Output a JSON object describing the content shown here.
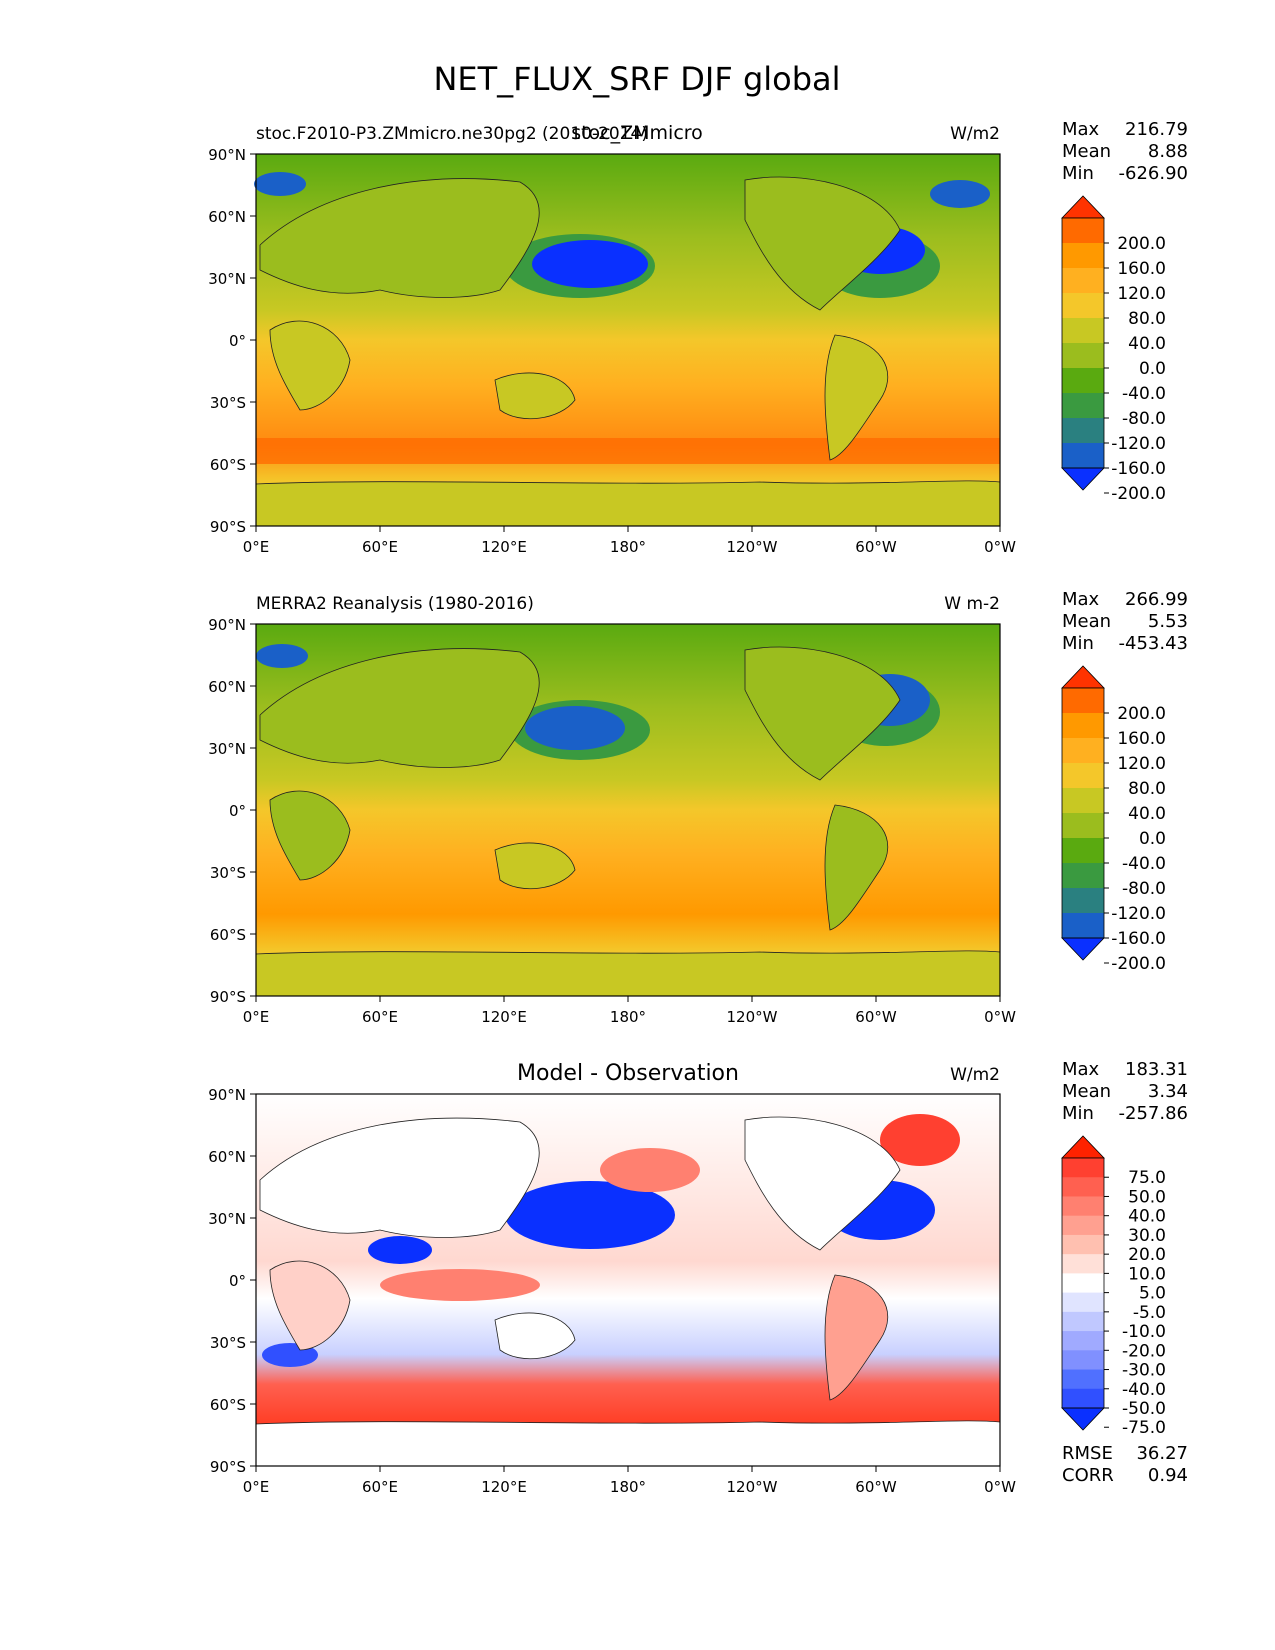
{
  "figure": {
    "title": "NET_FLUX_SRF DJF global",
    "lat_ticks": [
      "90°N",
      "60°N",
      "30°N",
      "0°",
      "30°S",
      "60°S",
      "90°S"
    ],
    "lon_ticks": [
      "0°E",
      "60°E",
      "120°E",
      "180°",
      "120°W",
      "60°W",
      "0°W"
    ]
  },
  "chart_data": [
    {
      "type": "heatmap",
      "panel": "model",
      "left_label": "stoc.F2010-P3.ZMmicro.ne30pg2 (2010-2014)",
      "overlay_label": "stoc_ZMmicro",
      "units": "W/m2",
      "stats": {
        "Max": "216.79",
        "Mean": "8.88",
        "Min": "-626.90"
      },
      "colorbar_levels": [
        "200.0",
        "160.0",
        "120.0",
        "80.0",
        "40.0",
        "0.0",
        "-40.0",
        "-80.0",
        "-120.0",
        "-160.0",
        "-200.0"
      ],
      "colorbar_colors": [
        "#ff3300",
        "#ff6a00",
        "#ff9900",
        "#ffb020",
        "#f4c72a",
        "#c8c823",
        "#9bbd1e",
        "#5aaa10",
        "#3a9a40",
        "#2a8080",
        "#1a60c8",
        "#0a30ff"
      ],
      "xlim": [
        0,
        360
      ],
      "ylim": [
        -90,
        90
      ]
    },
    {
      "type": "heatmap",
      "panel": "observation",
      "left_label": "MERRA2 Reanalysis (1980-2016)",
      "units": "W m-2",
      "stats": {
        "Max": "266.99",
        "Mean": "5.53",
        "Min": "-453.43"
      },
      "colorbar_levels": [
        "200.0",
        "160.0",
        "120.0",
        "80.0",
        "40.0",
        "0.0",
        "-40.0",
        "-80.0",
        "-120.0",
        "-160.0",
        "-200.0"
      ],
      "colorbar_colors": [
        "#ff3300",
        "#ff6a00",
        "#ff9900",
        "#ffb020",
        "#f4c72a",
        "#c8c823",
        "#9bbd1e",
        "#5aaa10",
        "#3a9a40",
        "#2a8080",
        "#1a60c8",
        "#0a30ff"
      ],
      "xlim": [
        0,
        360
      ],
      "ylim": [
        -90,
        90
      ]
    },
    {
      "type": "heatmap",
      "panel": "difference",
      "center_title": "Model - Observation",
      "units": "W/m2",
      "stats": {
        "Max": "183.31",
        "Mean": "3.34",
        "Min": "-257.86"
      },
      "extra_stats": {
        "RMSE": "36.27",
        "CORR": "0.94"
      },
      "colorbar_levels": [
        "75.0",
        "50.0",
        "40.0",
        "30.0",
        "20.0",
        "10.0",
        "5.0",
        "-5.0",
        "-10.0",
        "-20.0",
        "-30.0",
        "-40.0",
        "-50.0",
        "-75.0"
      ],
      "colorbar_colors": [
        "#ff2200",
        "#ff4030",
        "#ff6050",
        "#ff8070",
        "#ffa090",
        "#ffc0b0",
        "#ffe0d8",
        "#ffffff",
        "#e0e4ff",
        "#c0c8ff",
        "#a0aaff",
        "#8090ff",
        "#5070ff",
        "#3050ff",
        "#0a30ff"
      ],
      "xlim": [
        0,
        360
      ],
      "ylim": [
        -90,
        90
      ]
    }
  ]
}
